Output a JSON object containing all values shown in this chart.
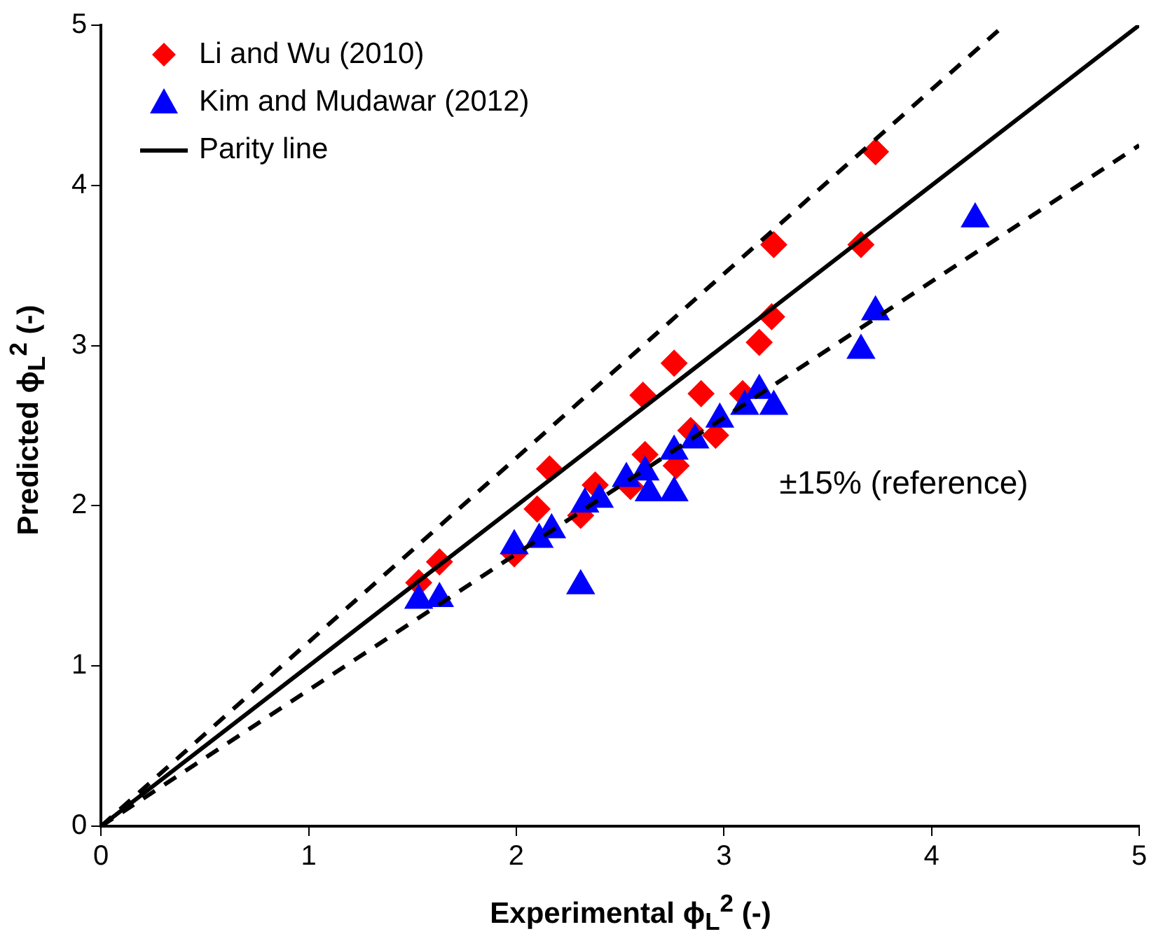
{
  "chart_data": {
    "type": "scatter",
    "xlabel": "Experimental ϕ$_{L}$$^{2}$ (-)",
    "ylabel": "Predicted ϕ$_{L}$$^{2}$ (-)",
    "xlim": [
      0,
      5
    ],
    "ylim": [
      0,
      5
    ],
    "xticks": [
      0,
      1,
      2,
      3,
      4,
      5
    ],
    "yticks": [
      0,
      1,
      2,
      3,
      4,
      5
    ],
    "grid": false,
    "legend": "top left",
    "annotations": [
      "±15% (reference)"
    ],
    "series": [
      {
        "name": "Li and Wu (2010)",
        "marker": "diamond",
        "color": "#ff0000",
        "x": [
          1.53,
          1.63,
          1.99,
          2.1,
          2.16,
          2.31,
          2.38,
          2.55,
          2.59,
          2.61,
          2.62,
          2.77,
          2.76,
          2.84,
          2.89,
          2.96,
          3.09,
          3.17,
          3.23,
          3.24,
          3.66,
          3.73
        ],
        "values": [
          1.52,
          1.65,
          1.7,
          1.98,
          2.23,
          1.94,
          2.13,
          2.12,
          null,
          2.69,
          2.32,
          2.25,
          2.89,
          2.47,
          2.7,
          2.44,
          2.7,
          3.02,
          3.18,
          3.63,
          3.63,
          4.21
        ]
      },
      {
        "name": "Kim and Mudawar (2012)",
        "marker": "triangle",
        "color": "#0000ff",
        "x": [
          1.53,
          1.63,
          1.99,
          2.11,
          2.17,
          2.31,
          2.33,
          2.4,
          2.53,
          2.62,
          2.64,
          2.76,
          2.76,
          2.86,
          2.98,
          3.1,
          3.17,
          3.24,
          3.66,
          3.73,
          4.21
        ],
        "values": [
          1.41,
          1.42,
          1.75,
          1.79,
          1.85,
          1.5,
          2.01,
          2.04,
          2.17,
          2.21,
          2.08,
          2.08,
          2.34,
          2.41,
          2.54,
          2.62,
          2.72,
          2.62,
          2.97,
          3.21,
          3.79
        ]
      },
      {
        "name": "Parity line",
        "type": "line",
        "marker": "none",
        "line_style": "solid",
        "color": "#000000",
        "x": [
          0,
          5
        ],
        "values": [
          0,
          5
        ]
      },
      {
        "type": "line",
        "marker": "none",
        "line_style": "dashed",
        "color": "#000000",
        "x": [
          0,
          4.35
        ],
        "values": [
          0,
          5
        ]
      },
      {
        "type": "line",
        "marker": "none",
        "line_style": "dashed",
        "color": "#000000",
        "x": [
          0,
          5
        ],
        "values": [
          0,
          4.25
        ]
      }
    ]
  }
}
